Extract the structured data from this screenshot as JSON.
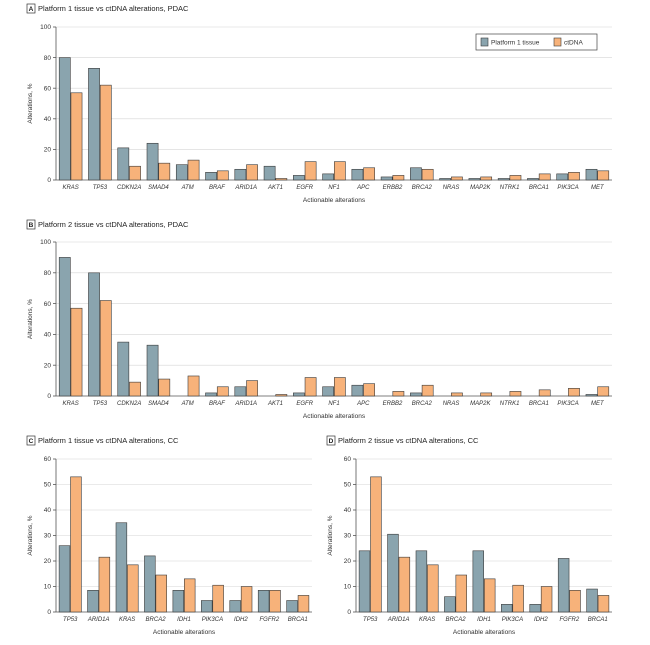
{
  "colors": {
    "tissue": "#8aa4ae",
    "ctdna": "#f7b27a"
  },
  "chart_data": [
    {
      "panel": "A",
      "type": "bar",
      "title": "Platform 1 tissue vs ctDNA alterations, PDAC",
      "xlabel": "Actionable alterations",
      "ylabel": "Alterations, %",
      "ylim": [
        0,
        100
      ],
      "yticks": [
        0,
        20,
        40,
        60,
        80,
        100
      ],
      "grid": true,
      "legend": "top-right",
      "categories": [
        "KRAS",
        "TP53",
        "CDKN2A",
        "SMAD4",
        "ATM",
        "BRAF",
        "ARID1A",
        "AKT1",
        "EGFR",
        "NF1",
        "APC",
        "ERBB2",
        "BRCA2",
        "NRAS",
        "MAP2K",
        "NTRK1",
        "BRCA1",
        "PIK3CA",
        "MET"
      ],
      "series": [
        {
          "name": "Platform 1 tissue",
          "values": [
            80,
            73,
            21,
            24,
            10,
            5,
            7,
            9,
            3,
            4,
            7,
            2,
            8,
            1,
            1,
            1,
            1,
            4,
            7
          ]
        },
        {
          "name": "ctDNA",
          "values": [
            57,
            62,
            9,
            11,
            13,
            6,
            10,
            1,
            12,
            12,
            8,
            3,
            7,
            2,
            2,
            3,
            4,
            5,
            6
          ]
        }
      ]
    },
    {
      "panel": "B",
      "type": "bar",
      "title": "Platform 2 tissue vs ctDNA alterations, PDAC",
      "xlabel": "Actionable alterations",
      "ylabel": "Alterations, %",
      "ylim": [
        0,
        100
      ],
      "yticks": [
        0,
        20,
        40,
        60,
        80,
        100
      ],
      "grid": true,
      "categories": [
        "KRAS",
        "TP53",
        "CDKN2A",
        "SMAD4",
        "ATM",
        "BRAF",
        "ARID1A",
        "AKT1",
        "EGFR",
        "NF1",
        "APC",
        "ERBB2",
        "BRCA2",
        "NRAS",
        "MAP2K",
        "NTRK1",
        "BRCA1",
        "PIK3CA",
        "MET"
      ],
      "series": [
        {
          "name": "Platform 2 tissue",
          "values": [
            90,
            80,
            35,
            33,
            0,
            2,
            6,
            0,
            2,
            6,
            7,
            0,
            2,
            0,
            0,
            0,
            0,
            0,
            1
          ]
        },
        {
          "name": "ctDNA",
          "values": [
            57,
            62,
            9,
            11,
            13,
            6,
            10,
            1,
            12,
            12,
            8,
            3,
            7,
            2,
            2,
            3,
            4,
            5,
            6
          ]
        }
      ]
    },
    {
      "panel": "C",
      "type": "bar",
      "title": "Platform 1 tissue vs ctDNA alterations, CC",
      "xlabel": "Actionable alterations",
      "ylabel": "Alterations, %",
      "ylim": [
        0,
        60
      ],
      "yticks": [
        0,
        10,
        20,
        30,
        40,
        50,
        60
      ],
      "grid": true,
      "categories": [
        "TP53",
        "ARID1A",
        "KRAS",
        "BRCA2",
        "IDH1",
        "PIK3CA",
        "IDH2",
        "FGFR2",
        "BRCA1"
      ],
      "series": [
        {
          "name": "Platform 1 tissue",
          "values": [
            26,
            8.5,
            35,
            22,
            8.5,
            4.5,
            4.5,
            8.5,
            4.5
          ]
        },
        {
          "name": "ctDNA",
          "values": [
            53,
            21.5,
            18.5,
            14.5,
            13,
            10.5,
            10,
            8.5,
            6.5
          ]
        }
      ]
    },
    {
      "panel": "D",
      "type": "bar",
      "title": "Platform 2 tissue vs ctDNA alterations, CC",
      "xlabel": "Actionable alterations",
      "ylabel": "Alterations, %",
      "ylim": [
        0,
        60
      ],
      "yticks": [
        0,
        10,
        20,
        30,
        40,
        50,
        60
      ],
      "grid": true,
      "categories": [
        "TP53",
        "ARID1A",
        "KRAS",
        "BRCA2",
        "IDH1",
        "PIK3CA",
        "IDH2",
        "FGFR2",
        "BRCA1"
      ],
      "series": [
        {
          "name": "Platform 2 tissue",
          "values": [
            24,
            30.5,
            24,
            6,
            24,
            3,
            3,
            21,
            9
          ]
        },
        {
          "name": "ctDNA",
          "values": [
            53,
            21.5,
            18.5,
            14.5,
            13,
            10.5,
            10,
            8.5,
            6.5
          ]
        }
      ]
    }
  ]
}
